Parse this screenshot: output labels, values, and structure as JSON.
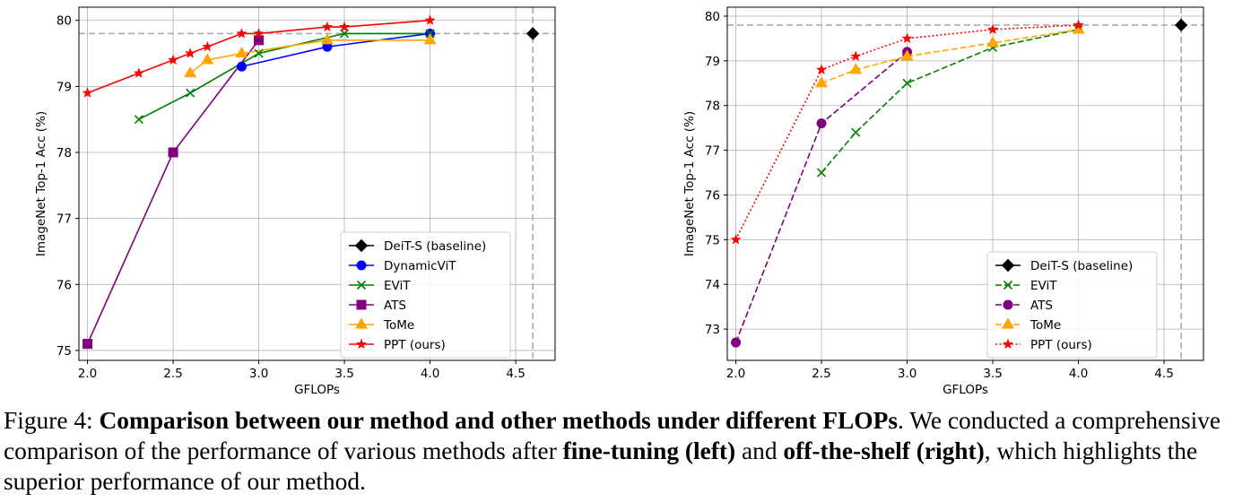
{
  "caption": {
    "label": "Figure 4:",
    "title": "Comparison between our method and other methods under different FLOPs",
    "text1": ". We conducted a comprehensive comparison of the performance of various methods after ",
    "bold1": "fine-tuning (left)",
    "text2": " and ",
    "bold2": "off-the-shelf (right)",
    "text3": ", which highlights the superior performance of our method."
  },
  "chart_data": [
    {
      "type": "line",
      "title": "",
      "xlabel": "GFLOPs",
      "ylabel": "ImageNet Top-1 Acc (%)",
      "xlim": [
        1.95,
        4.73
      ],
      "ylim": [
        74.85,
        80.2
      ],
      "xticks": [
        2.0,
        2.5,
        3.0,
        3.5,
        4.0,
        4.5
      ],
      "xtick_labels": [
        "2.0",
        "2.5",
        "3.0",
        "3.5",
        "4.0",
        "4.5"
      ],
      "yticks": [
        75,
        76,
        77,
        78,
        79,
        80
      ],
      "ytick_labels": [
        "75",
        "76",
        "77",
        "78",
        "79",
        "80"
      ],
      "grid": true,
      "legend_position": "lower-right",
      "reference_lines": {
        "x": 4.6,
        "y": 79.8
      },
      "series": [
        {
          "name": "DeiT-S (baseline)",
          "color": "#000000",
          "marker": "diamond",
          "linestyle": "solid",
          "x": [
            4.6
          ],
          "y": [
            79.8
          ]
        },
        {
          "name": "DynamicViT",
          "color": "#0000ff",
          "marker": "circle",
          "linestyle": "solid",
          "x": [
            2.9,
            3.4,
            4.0
          ],
          "y": [
            79.3,
            79.6,
            79.8
          ]
        },
        {
          "name": "EViT",
          "color": "#008000",
          "marker": "x",
          "linestyle": "solid",
          "x": [
            2.3,
            2.6,
            3.0,
            3.5,
            4.0
          ],
          "y": [
            78.5,
            78.9,
            79.5,
            79.8,
            79.8
          ]
        },
        {
          "name": "ATS",
          "color": "#800080",
          "marker": "square",
          "linestyle": "solid",
          "x": [
            2.0,
            2.5,
            3.0
          ],
          "y": [
            75.1,
            78.0,
            79.7
          ]
        },
        {
          "name": "ToMe",
          "color": "#ffa500",
          "marker": "triangle",
          "linestyle": "solid",
          "x": [
            2.6,
            2.7,
            2.9,
            3.4,
            4.0
          ],
          "y": [
            79.2,
            79.4,
            79.5,
            79.7,
            79.7
          ]
        },
        {
          "name": "PPT (ours)",
          "color": "#ff0000",
          "marker": "star",
          "linestyle": "solid",
          "x": [
            2.0,
            2.3,
            2.5,
            2.6,
            2.7,
            2.9,
            3.0,
            3.4,
            3.5,
            4.0
          ],
          "y": [
            78.9,
            79.2,
            79.4,
            79.5,
            79.6,
            79.8,
            79.8,
            79.9,
            79.9,
            80.0
          ]
        }
      ]
    },
    {
      "type": "line",
      "title": "",
      "xlabel": "GFLOPs",
      "ylabel": "ImageNet Top-1 Acc (%)",
      "xlim": [
        1.95,
        4.73
      ],
      "ylim": [
        72.3,
        80.2
      ],
      "xticks": [
        2.0,
        2.5,
        3.0,
        3.5,
        4.0,
        4.5
      ],
      "xtick_labels": [
        "2.0",
        "2.5",
        "3.0",
        "3.5",
        "4.0",
        "4.5"
      ],
      "yticks": [
        73,
        74,
        75,
        76,
        77,
        78,
        79,
        80
      ],
      "ytick_labels": [
        "73",
        "74",
        "75",
        "76",
        "77",
        "78",
        "79",
        "80"
      ],
      "grid": true,
      "legend_position": "lower-right",
      "reference_lines": {
        "x": 4.6,
        "y": 79.8
      },
      "series": [
        {
          "name": "DeiT-S (baseline)",
          "color": "#000000",
          "marker": "diamond",
          "linestyle": "solid",
          "x": [
            4.6
          ],
          "y": [
            79.8
          ]
        },
        {
          "name": "EViT",
          "color": "#008000",
          "marker": "x",
          "linestyle": "dashed",
          "x": [
            2.5,
            2.7,
            3.0,
            3.5,
            4.0
          ],
          "y": [
            76.5,
            77.4,
            78.5,
            79.3,
            79.7
          ]
        },
        {
          "name": "ATS",
          "color": "#800080",
          "marker": "circle",
          "linestyle": "dashed",
          "x": [
            2.0,
            2.5,
            3.0
          ],
          "y": [
            72.7,
            77.6,
            79.2
          ]
        },
        {
          "name": "ToMe",
          "color": "#ffa500",
          "marker": "triangle",
          "linestyle": "dashed",
          "x": [
            2.5,
            2.7,
            3.0,
            3.5,
            4.0
          ],
          "y": [
            78.5,
            78.8,
            79.1,
            79.4,
            79.7
          ]
        },
        {
          "name": "PPT (ours)",
          "color": "#ff0000",
          "marker": "star",
          "linestyle": "dotted",
          "x": [
            2.0,
            2.5,
            2.7,
            3.0,
            3.5,
            4.0
          ],
          "y": [
            75.0,
            78.8,
            79.1,
            79.5,
            79.7,
            79.8
          ]
        }
      ]
    }
  ]
}
